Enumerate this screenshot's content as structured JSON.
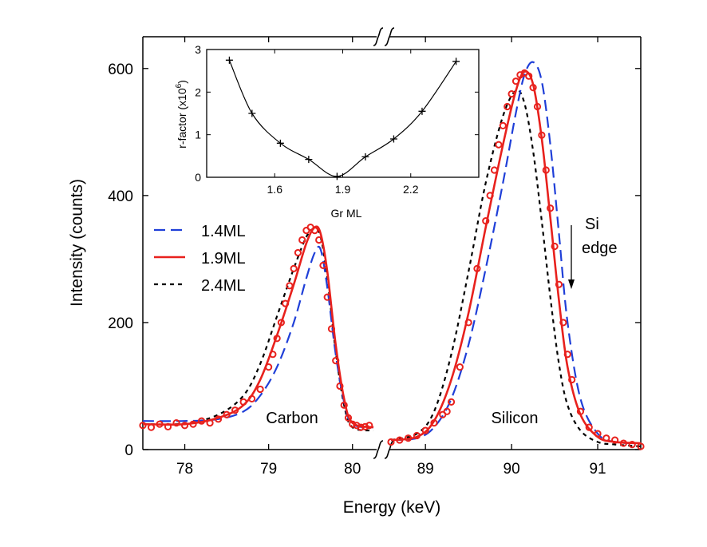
{
  "chart_data": {
    "type": "line",
    "xlabel": "Energy (keV)",
    "ylabel": "Intensity (counts)",
    "ylim": [
      0,
      650
    ],
    "y_ticks": [
      0,
      200,
      400,
      600
    ],
    "x_break": true,
    "left_segment": {
      "xlim": [
        77.5,
        80.25
      ],
      "ticks": [
        78,
        79,
        80
      ]
    },
    "right_segment": {
      "xlim": [
        88.6,
        91.5
      ],
      "ticks": [
        89,
        90,
        91
      ]
    },
    "legend": {
      "placement": "left",
      "entries": [
        {
          "label": "1.4ML",
          "color": "#1f3fd8",
          "style": "dashed"
        },
        {
          "label": "1.9ML",
          "color": "#e8211d",
          "style": "solid"
        },
        {
          "label": "2.4ML",
          "color": "#000000",
          "style": "dotted"
        }
      ]
    },
    "annotations": {
      "carbon": "Carbon",
      "silicon": "Silicon",
      "si_edge_line1": "Si",
      "si_edge_line2": "edge"
    },
    "carbon_peak": {
      "series": [
        {
          "name": "1.4ML",
          "x": [
            77.5,
            78.0,
            78.4,
            78.7,
            78.9,
            79.1,
            79.3,
            79.45,
            79.55,
            79.62,
            79.7,
            79.8,
            79.9,
            80.0,
            80.25
          ],
          "y": [
            45,
            45,
            48,
            60,
            85,
            130,
            200,
            270,
            310,
            315,
            255,
            150,
            75,
            40,
            35
          ]
        },
        {
          "name": "1.9ML",
          "x": [
            77.5,
            78.0,
            78.4,
            78.7,
            78.9,
            79.1,
            79.3,
            79.45,
            79.55,
            79.62,
            79.7,
            79.8,
            79.9,
            80.0,
            80.25
          ],
          "y": [
            40,
            40,
            50,
            70,
            110,
            180,
            260,
            325,
            350,
            340,
            280,
            165,
            80,
            42,
            35
          ]
        },
        {
          "name": "2.4ML",
          "x": [
            77.5,
            78.0,
            78.4,
            78.7,
            78.9,
            79.1,
            79.3,
            79.45,
            79.55,
            79.62,
            79.7,
            79.8,
            79.9,
            80.0,
            80.25
          ],
          "y": [
            40,
            41,
            55,
            85,
            135,
            210,
            285,
            335,
            348,
            335,
            270,
            155,
            70,
            35,
            30
          ]
        }
      ],
      "measured": {
        "x": [
          77.5,
          77.6,
          77.7,
          77.8,
          77.9,
          78.0,
          78.1,
          78.2,
          78.3,
          78.4,
          78.5,
          78.6,
          78.7,
          78.8,
          78.9,
          79.0,
          79.05,
          79.1,
          79.15,
          79.2,
          79.25,
          79.3,
          79.35,
          79.4,
          79.45,
          79.5,
          79.55,
          79.6,
          79.65,
          79.7,
          79.75,
          79.8,
          79.85,
          79.9,
          79.95,
          80.0,
          80.05,
          80.1,
          80.15,
          80.2
        ],
        "y": [
          38,
          35,
          40,
          36,
          42,
          38,
          40,
          45,
          42,
          48,
          55,
          62,
          75,
          80,
          95,
          130,
          150,
          175,
          200,
          230,
          258,
          285,
          310,
          330,
          345,
          350,
          345,
          330,
          290,
          240,
          190,
          140,
          100,
          70,
          50,
          40,
          38,
          35,
          36,
          38
        ]
      }
    },
    "silicon_peak": {
      "series": [
        {
          "name": "1.4ML",
          "x": [
            88.6,
            88.9,
            89.1,
            89.3,
            89.5,
            89.7,
            89.9,
            90.05,
            90.15,
            90.25,
            90.35,
            90.45,
            90.55,
            90.65,
            90.8,
            91.0,
            91.2,
            91.5
          ],
          "y": [
            15,
            18,
            35,
            80,
            165,
            285,
            420,
            530,
            590,
            610,
            580,
            480,
            340,
            200,
            80,
            25,
            12,
            10
          ]
        },
        {
          "name": "1.9ML",
          "x": [
            88.6,
            88.9,
            89.1,
            89.3,
            89.5,
            89.7,
            89.9,
            90.05,
            90.15,
            90.25,
            90.35,
            90.45,
            90.55,
            90.65,
            90.8,
            91.0,
            91.2,
            91.5
          ],
          "y": [
            15,
            20,
            45,
            110,
            215,
            350,
            480,
            565,
            595,
            575,
            490,
            365,
            235,
            130,
            55,
            20,
            12,
            10
          ]
        },
        {
          "name": "2.4ML",
          "x": [
            88.6,
            88.9,
            89.1,
            89.3,
            89.5,
            89.7,
            89.9,
            90.05,
            90.15,
            90.25,
            90.35,
            90.45,
            90.55,
            90.65,
            90.8,
            91.0,
            91.2,
            91.5
          ],
          "y": [
            15,
            25,
            60,
            150,
            280,
            420,
            525,
            565,
            545,
            470,
            360,
            240,
            135,
            70,
            30,
            12,
            8,
            5
          ]
        }
      ],
      "measured": {
        "x": [
          88.6,
          88.7,
          88.8,
          88.9,
          89.0,
          89.1,
          89.2,
          89.25,
          89.3,
          89.4,
          89.5,
          89.6,
          89.7,
          89.75,
          89.8,
          89.85,
          89.9,
          89.95,
          90.0,
          90.05,
          90.1,
          90.15,
          90.2,
          90.25,
          90.3,
          90.35,
          90.4,
          90.45,
          90.5,
          90.55,
          90.6,
          90.65,
          90.7,
          90.8,
          90.9,
          91.0,
          91.1,
          91.2,
          91.3,
          91.4,
          91.5
        ],
        "y": [
          12,
          15,
          18,
          22,
          30,
          42,
          55,
          60,
          75,
          130,
          200,
          285,
          360,
          400,
          440,
          480,
          510,
          540,
          560,
          580,
          590,
          593,
          588,
          570,
          540,
          495,
          440,
          380,
          320,
          260,
          200,
          150,
          110,
          60,
          35,
          25,
          18,
          15,
          10,
          8,
          5
        ]
      }
    },
    "inset": {
      "xlabel": "Gr ML",
      "ylabel": "r-factor (x10",
      "ylabel_exp": "6",
      "ylabel_close": ")",
      "xlim": [
        1.3,
        2.5
      ],
      "ylim": [
        0,
        3
      ],
      "x_ticks": [
        1.6,
        1.9,
        2.2
      ],
      "y_ticks": [
        0,
        1,
        2,
        3
      ],
      "x": [
        1.4,
        1.5,
        1.625,
        1.75,
        1.875,
        2.0,
        2.125,
        2.25,
        2.4
      ],
      "y": [
        2.75,
        1.5,
        0.8,
        0.42,
        0.02,
        0.48,
        0.9,
        1.55,
        2.72
      ]
    }
  }
}
